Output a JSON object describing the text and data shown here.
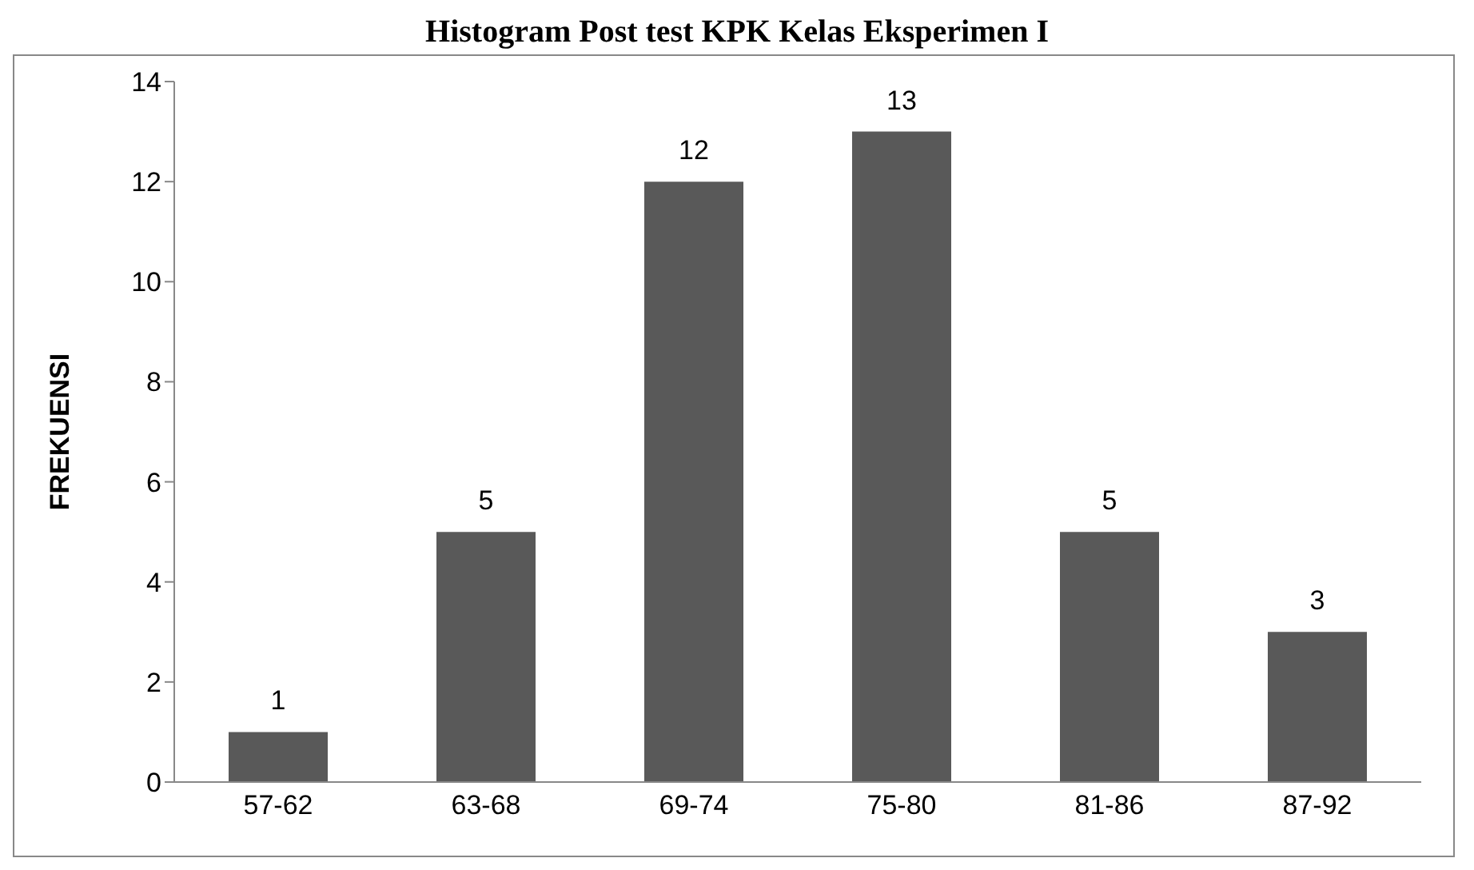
{
  "chart_data": {
    "type": "bar",
    "title": "Histogram Post test KPK Kelas Eksperimen I",
    "ylabel": "FREKUENSI",
    "categories": [
      "57-62",
      "63-68",
      "69-74",
      "75-80",
      "81-86",
      "87-92"
    ],
    "values": [
      1,
      5,
      12,
      13,
      5,
      3
    ],
    "color": "#595959",
    "ylim": [
      0,
      14
    ],
    "yticks": [
      0,
      2,
      4,
      6,
      8,
      10,
      12,
      14
    ],
    "grid": false,
    "data_labels": true
  }
}
